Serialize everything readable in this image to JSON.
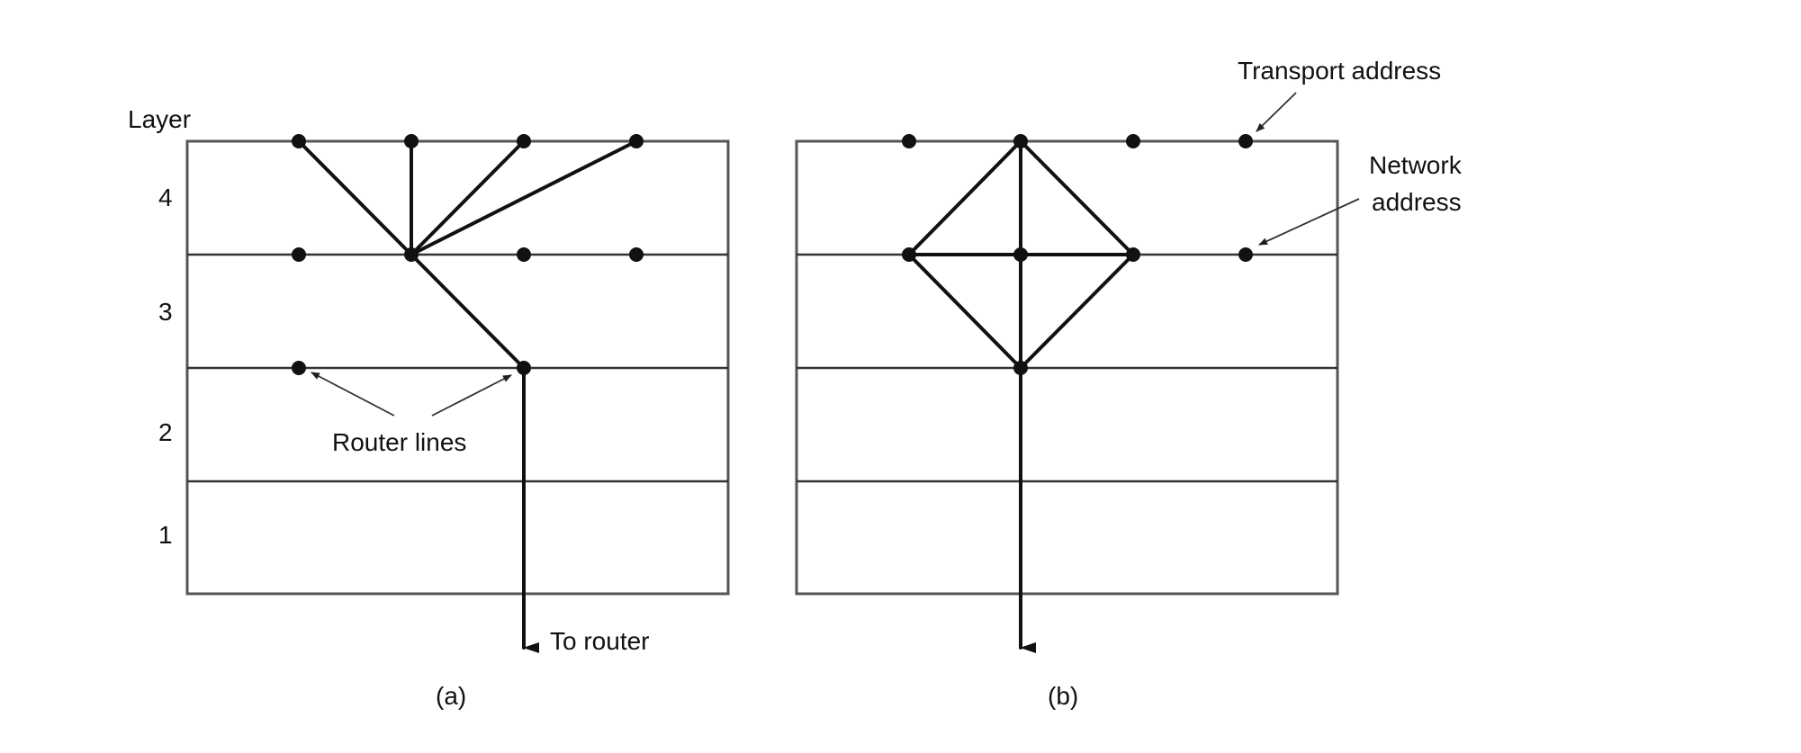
{
  "layer_heading": "Layer",
  "layers": [
    "4",
    "3",
    "2",
    "1"
  ],
  "panels": [
    {
      "caption": "(a)",
      "router_label": "Router lines",
      "exit_label": "To router"
    },
    {
      "caption": "(b)",
      "transport_label": "Transport address",
      "network_label": [
        "Network",
        "address"
      ]
    }
  ],
  "colors": {
    "line": "#111111",
    "frame": "#555555",
    "background": "#ffffff"
  }
}
